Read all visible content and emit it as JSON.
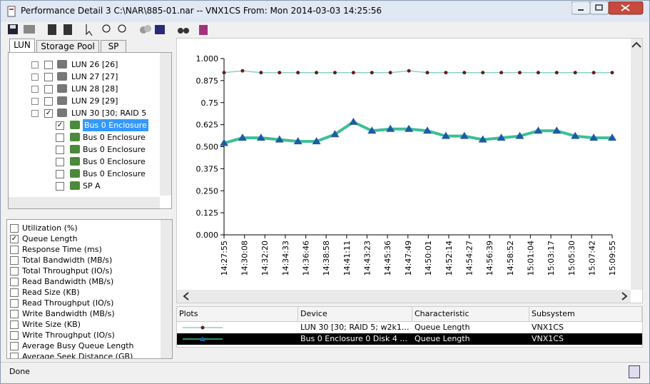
{
  "window": {
    "title": "Performance Detail 3 C:\\NAR\\885-01.nar -- VNX1CS From: Mon 2014-03-03 14:25:56"
  },
  "tabs": [
    "LUN",
    "Storage Pool",
    "SP"
  ],
  "tree": [
    {
      "label": "LUN 26 [26]",
      "checked": false,
      "selected": false,
      "level": 0
    },
    {
      "label": "LUN 27 [27]",
      "checked": false,
      "selected": false,
      "level": 0
    },
    {
      "label": "LUN 28 [28]",
      "checked": false,
      "selected": false,
      "level": 0
    },
    {
      "label": "LUN 29 [29]",
      "checked": false,
      "selected": false,
      "level": 0
    },
    {
      "label": "LUN 30 [30; RAID 5",
      "checked": true,
      "selected": false,
      "level": 0
    },
    {
      "label": "Bus 0 Enclosure",
      "checked": true,
      "selected": true,
      "level": 1
    },
    {
      "label": "Bus 0 Enclosure",
      "checked": false,
      "selected": false,
      "level": 1
    },
    {
      "label": "Bus 0 Enclosure",
      "checked": false,
      "selected": false,
      "level": 1
    },
    {
      "label": "Bus 0 Enclosure",
      "checked": false,
      "selected": false,
      "level": 1
    },
    {
      "label": "Bus 0 Enclosure",
      "checked": false,
      "selected": false,
      "level": 1
    },
    {
      "label": "SP A",
      "checked": false,
      "selected": false,
      "level": 1
    }
  ],
  "metrics": [
    {
      "label": "Utilization (%)",
      "checked": false
    },
    {
      "label": "Queue Length",
      "checked": true
    },
    {
      "label": "Response Time (ms)",
      "checked": false
    },
    {
      "label": "Total Bandwidth (MB/s)",
      "checked": false
    },
    {
      "label": "Total Throughput (IO/s)",
      "checked": false
    },
    {
      "label": "Read Bandwidth (MB/s)",
      "checked": false
    },
    {
      "label": "Read Size (KB)",
      "checked": false
    },
    {
      "label": "Read Throughput (IO/s)",
      "checked": false
    },
    {
      "label": "Write Bandwidth (MB/s)",
      "checked": false
    },
    {
      "label": "Write Size (KB)",
      "checked": false
    },
    {
      "label": "Write Throughput (IO/s)",
      "checked": false
    },
    {
      "label": "Average Busy Queue Length",
      "checked": false
    },
    {
      "label": "Average Seek Distance (GB)",
      "checked": false
    }
  ],
  "chart_data": {
    "type": "line",
    "x": [
      52075,
      52195,
      52315,
      52435,
      52555,
      52675,
      52795,
      52915,
      53035,
      53155,
      53275,
      53395,
      53515,
      53635,
      53755,
      53875,
      53995,
      54115,
      54235,
      54355,
      54475,
      54595
    ],
    "xlim": [
      52075,
      54595
    ],
    "xticks": [
      {
        "value": 52075,
        "label": "14:27:55"
      },
      {
        "value": 52208,
        "label": "14:30:08"
      },
      {
        "value": 52340,
        "label": "14:32:20"
      },
      {
        "value": 52473,
        "label": "14:34:33"
      },
      {
        "value": 52606,
        "label": "14:36:46"
      },
      {
        "value": 52738,
        "label": "14:38:58"
      },
      {
        "value": 52871,
        "label": "14:41:11"
      },
      {
        "value": 53003,
        "label": "14:43:23"
      },
      {
        "value": 53136,
        "label": "14:45:36"
      },
      {
        "value": 53269,
        "label": "14:47:49"
      },
      {
        "value": 53401,
        "label": "14:50:01"
      },
      {
        "value": 53534,
        "label": "14:52:14"
      },
      {
        "value": 53667,
        "label": "14:54:27"
      },
      {
        "value": 53799,
        "label": "14:56:39"
      },
      {
        "value": 53932,
        "label": "14:58:52"
      },
      {
        "value": 54064,
        "label": "15:01:04"
      },
      {
        "value": 54197,
        "label": "15:03:17"
      },
      {
        "value": 54330,
        "label": "15:05:30"
      },
      {
        "value": 54462,
        "label": "15:07:42"
      },
      {
        "value": 54595,
        "label": "15:09:55"
      }
    ],
    "ylim": [
      0,
      1
    ],
    "yticks": [
      {
        "value": 0,
        "label": "0.000"
      },
      0.125,
      {
        "value": 0.25,
        "label": "0.250"
      },
      0.375,
      {
        "value": 0.5,
        "label": "0.500"
      },
      0.625,
      {
        "value": 0.75,
        "label": "0.75"
      },
      0.875,
      {
        "value": 1,
        "label": "1.000"
      }
    ],
    "series": [
      {
        "name": "LUN 30 [30; RAID 5; w2k1...",
        "color": "#6b1a1a",
        "line_color": "#86d3c6",
        "marker": "circle",
        "values": [
          0.92,
          0.93,
          0.92,
          0.92,
          0.92,
          0.92,
          0.92,
          0.92,
          0.92,
          0.92,
          0.93,
          0.92,
          0.92,
          0.92,
          0.92,
          0.92,
          0.92,
          0.92,
          0.92,
          0.92,
          0.92,
          0.92
        ]
      },
      {
        "name": "Bus 0 Enclosure 0 Disk 4 ...",
        "color": "#1f5aa6",
        "line_color": "#3cbf96",
        "marker": "triangle",
        "values": [
          0.52,
          0.55,
          0.55,
          0.54,
          0.53,
          0.53,
          0.57,
          0.64,
          0.59,
          0.6,
          0.6,
          0.59,
          0.56,
          0.56,
          0.54,
          0.55,
          0.56,
          0.59,
          0.59,
          0.56,
          0.55,
          0.55
        ]
      }
    ]
  },
  "plots_table": {
    "headers": [
      "Plots",
      "Device",
      "Characteristic",
      "Subsystem"
    ],
    "rows": [
      {
        "characteristic": "Queue Length",
        "subsystem": "VNX1CS"
      },
      {
        "characteristic": "Queue Length",
        "subsystem": "VNX1CS"
      }
    ]
  },
  "status": "Done"
}
